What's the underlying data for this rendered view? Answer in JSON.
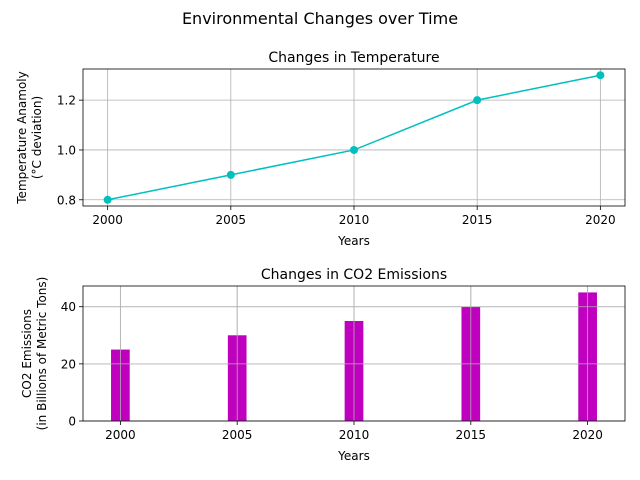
{
  "figure": {
    "suptitle": "Environmental Changes over Time"
  },
  "chart_data": [
    {
      "type": "line",
      "title": "Changes in Temperature",
      "xlabel": "Years",
      "ylabel_lines": [
        "Temperature Anamoly",
        "(°C deviation)"
      ],
      "x": [
        2000,
        2005,
        2010,
        2015,
        2020
      ],
      "values": [
        0.8,
        0.9,
        1.0,
        1.2,
        1.3
      ],
      "xticks": [
        2000,
        2005,
        2010,
        2015,
        2020
      ],
      "yticks": [
        0.8,
        1.0,
        1.2
      ],
      "ytick_labels": [
        "0.8",
        "1.0",
        "1.2"
      ],
      "xlim": [
        1999,
        2021
      ],
      "ylim": [
        0.775,
        1.325
      ],
      "grid": true,
      "color": "#00bfbf",
      "marker": "circle"
    },
    {
      "type": "bar",
      "title": "Changes in CO2 Emissions",
      "xlabel": "Years",
      "ylabel_lines": [
        "CO2 Emissions",
        "(in Billions of Metric Tons)"
      ],
      "categories": [
        2000,
        2005,
        2010,
        2015,
        2020
      ],
      "values": [
        25,
        30,
        35,
        40,
        45
      ],
      "xticks": [
        2000,
        2005,
        2010,
        2015,
        2020
      ],
      "yticks": [
        0,
        20,
        40
      ],
      "ytick_labels": [
        "0",
        "20",
        "40"
      ],
      "bar_width": 0.8,
      "xlim": [
        1998.4,
        2021.6
      ],
      "ylim": [
        0,
        47.25
      ],
      "grid": true,
      "color": "#bf00bf"
    }
  ]
}
